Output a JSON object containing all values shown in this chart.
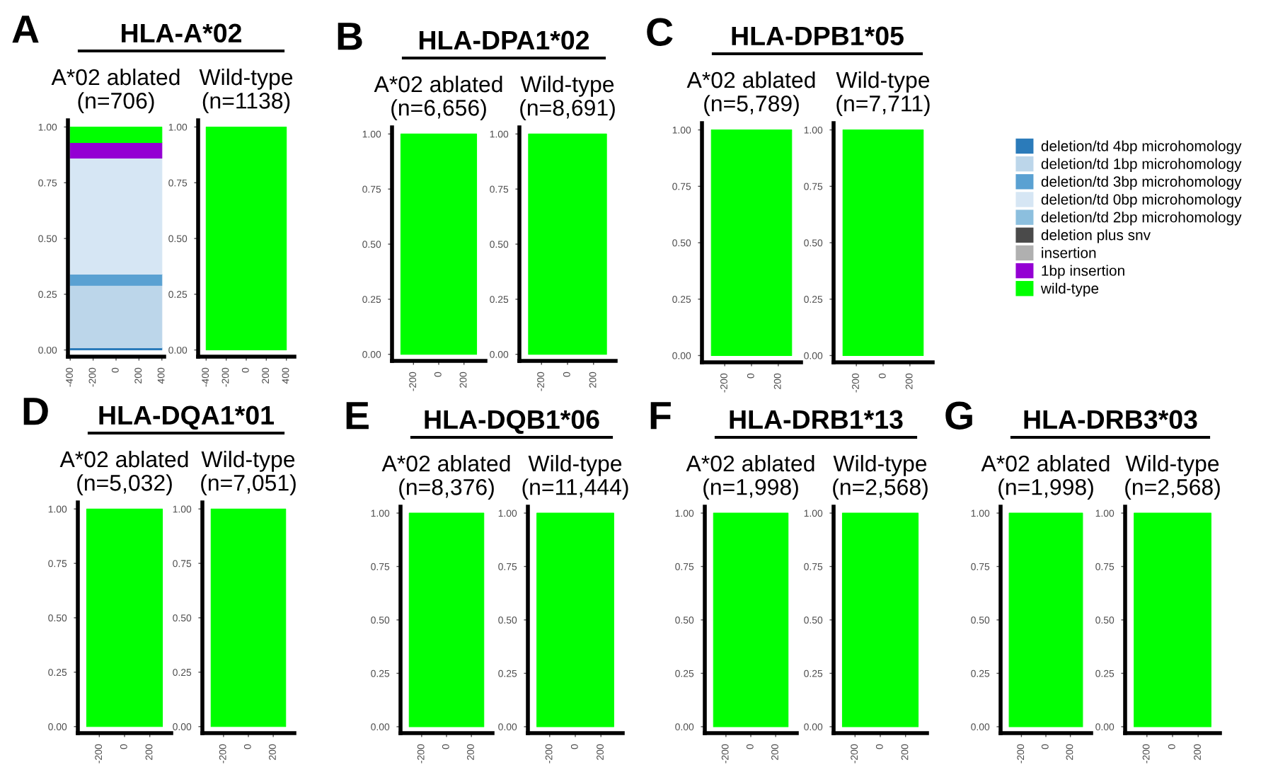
{
  "chart_data": [
    {
      "type": "area",
      "stacked": true,
      "title": "HLA-A*02",
      "subtitle": "A*02 ablated\n(n=706)",
      "annotations": [
        "A"
      ],
      "legend": "right",
      "x": [
        -400,
        400
      ],
      "xlim": [
        -420,
        420
      ],
      "xticks": [
        -400,
        -200,
        0,
        200,
        400
      ],
      "ylim": [
        -0.03,
        1.03
      ],
      "yticks": [
        {
          "value": 0,
          "label": "0.00"
        },
        {
          "value": 0.25,
          "label": "0.25"
        },
        {
          "value": 0.5,
          "label": "0.50"
        },
        {
          "value": 0.75,
          "label": "0.75"
        },
        {
          "value": 1,
          "label": "1.00"
        }
      ],
      "series": [
        {
          "name": "deletion/td 4bp microhomology",
          "color": "#2b7bba",
          "values": [
            0.01,
            0.01
          ]
        },
        {
          "name": "deletion/td 1bp microhomology",
          "color": "#bcd6ea",
          "values": [
            0.28,
            0.28
          ]
        },
        {
          "name": "deletion/td 3bp microhomology",
          "color": "#5aa1d2",
          "values": [
            0.05,
            0.05
          ]
        },
        {
          "name": "deletion/td 0bp microhomology",
          "color": "#d6e6f4",
          "values": [
            0.52,
            0.52
          ]
        },
        {
          "name": "deletion/td 2bp microhomology",
          "color": "#8cbfde",
          "values": [
            null,
            null
          ]
        },
        {
          "name": "deletion plus snv",
          "color": "#4a4a4a",
          "values": [
            null,
            null
          ]
        },
        {
          "name": "insertion",
          "color": "#b0b0b0",
          "values": [
            null,
            null
          ]
        },
        {
          "name": "1bp insertion",
          "color": "#9400d3",
          "values": [
            0.07,
            0.07
          ]
        },
        {
          "name": "wild-type",
          "color": "#00ff00",
          "values": [
            0.07,
            0.07
          ]
        }
      ]
    },
    {
      "type": "area",
      "stacked": true,
      "subtitle": "Wild-type\n(n=1138)",
      "x": [
        -400,
        400
      ],
      "xlim": [
        -480,
        480
      ],
      "xticks": [
        -400,
        -200,
        0,
        200,
        400
      ],
      "ylim": [
        -0.03,
        1.03
      ],
      "yticks": [
        {
          "value": 0,
          "label": "0.00"
        },
        {
          "value": 0.25,
          "label": "0.25"
        },
        {
          "value": 0.5,
          "label": "0.50"
        },
        {
          "value": 0.75,
          "label": "0.75"
        },
        {
          "value": 1,
          "label": "1.00"
        }
      ],
      "series": [
        {
          "color": "#00ff00",
          "values": [
            1,
            1
          ]
        }
      ]
    },
    {
      "type": "area",
      "stacked": true,
      "title": "HLA-DPA1*02",
      "subtitle": "A*02 ablated\n(n=6,656)",
      "annotations": [
        "B"
      ],
      "x": [
        -300,
        300
      ],
      "xlim": [
        -370,
        370
      ],
      "xticks": [
        -200,
        0,
        200
      ],
      "ylim": [
        -0.03,
        1.03
      ],
      "yticks": [
        {
          "value": 0,
          "label": "0.00"
        },
        {
          "value": 0.25,
          "label": "0.25"
        },
        {
          "value": 0.5,
          "label": "0.50"
        },
        {
          "value": 0.75,
          "label": "0.75"
        },
        {
          "value": 1,
          "label": "1.00"
        }
      ],
      "series": [
        {
          "color": "#00ff00",
          "values": [
            1,
            1
          ]
        }
      ]
    },
    {
      "type": "area",
      "stacked": true,
      "subtitle": "Wild-type\n(n=8,691)",
      "x": [
        -300,
        300
      ],
      "xlim": [
        -370,
        370
      ],
      "xticks": [
        -200,
        0,
        200
      ],
      "ylim": [
        -0.03,
        1.03
      ],
      "yticks": [
        {
          "value": 0,
          "label": "0.00"
        },
        {
          "value": 0.25,
          "label": "0.25"
        },
        {
          "value": 0.5,
          "label": "0.50"
        },
        {
          "value": 0.75,
          "label": "0.75"
        },
        {
          "value": 1,
          "label": "1.00"
        }
      ],
      "series": [
        {
          "color": "#00ff00",
          "values": [
            1,
            1
          ]
        }
      ]
    },
    {
      "type": "area",
      "stacked": true,
      "title": "HLA-DPB1*05",
      "subtitle": "A*02 ablated\n(n=5,789)",
      "annotations": [
        "C"
      ],
      "x": [
        -300,
        300
      ],
      "xlim": [
        -370,
        370
      ],
      "xticks": [
        -200,
        0,
        200
      ],
      "ylim": [
        -0.03,
        1.03
      ],
      "yticks": [
        {
          "value": 0,
          "label": "0.00"
        },
        {
          "value": 0.25,
          "label": "0.25"
        },
        {
          "value": 0.5,
          "label": "0.50"
        },
        {
          "value": 0.75,
          "label": "0.75"
        },
        {
          "value": 1,
          "label": "1.00"
        }
      ],
      "series": [
        {
          "color": "#00ff00",
          "values": [
            1,
            1
          ]
        }
      ]
    },
    {
      "type": "area",
      "stacked": true,
      "subtitle": "Wild-type\n(n=7,711)",
      "x": [
        -300,
        300
      ],
      "xlim": [
        -370,
        370
      ],
      "xticks": [
        -200,
        0,
        200
      ],
      "ylim": [
        -0.03,
        1.03
      ],
      "yticks": [
        {
          "value": 0,
          "label": "0.00"
        },
        {
          "value": 0.25,
          "label": "0.25"
        },
        {
          "value": 0.5,
          "label": "0.50"
        },
        {
          "value": 0.75,
          "label": "0.75"
        },
        {
          "value": 1,
          "label": "1.00"
        }
      ],
      "series": [
        {
          "color": "#00ff00",
          "values": [
            1,
            1
          ]
        }
      ]
    },
    {
      "type": "area",
      "stacked": true,
      "title": "HLA-DQA1*01",
      "subtitle": "A*02 ablated\n(n=5,032)",
      "annotations": [
        "D"
      ],
      "x": [
        -300,
        300
      ],
      "xlim": [
        -370,
        370
      ],
      "xticks": [
        -200,
        0,
        200
      ],
      "ylim": [
        -0.03,
        1.03
      ],
      "yticks": [
        {
          "value": 0,
          "label": "0.00"
        },
        {
          "value": 0.25,
          "label": "0.25"
        },
        {
          "value": 0.5,
          "label": "0.50"
        },
        {
          "value": 0.75,
          "label": "0.75"
        },
        {
          "value": 1,
          "label": "1.00"
        }
      ],
      "series": [
        {
          "color": "#00ff00",
          "values": [
            1,
            1
          ]
        }
      ]
    },
    {
      "type": "area",
      "stacked": true,
      "subtitle": "Wild-type\n(n=7,051)",
      "x": [
        -300,
        300
      ],
      "xlim": [
        -370,
        370
      ],
      "xticks": [
        -200,
        0,
        200
      ],
      "ylim": [
        -0.03,
        1.03
      ],
      "yticks": [
        {
          "value": 0,
          "label": "0.00"
        },
        {
          "value": 0.25,
          "label": "0.25"
        },
        {
          "value": 0.5,
          "label": "0.50"
        },
        {
          "value": 0.75,
          "label": "0.75"
        },
        {
          "value": 1,
          "label": "1.00"
        }
      ],
      "series": [
        {
          "color": "#00ff00",
          "values": [
            1,
            1
          ]
        }
      ]
    },
    {
      "type": "area",
      "stacked": true,
      "title": "HLA-DQB1*06",
      "subtitle": "A*02 ablated\n(n=8,376)",
      "annotations": [
        "E"
      ],
      "x": [
        -300,
        300
      ],
      "xlim": [
        -370,
        370
      ],
      "xticks": [
        -200,
        0,
        200
      ],
      "ylim": [
        -0.03,
        1.03
      ],
      "yticks": [
        {
          "value": 0,
          "label": "0.00"
        },
        {
          "value": 0.25,
          "label": "0.25"
        },
        {
          "value": 0.5,
          "label": "0.50"
        },
        {
          "value": 0.75,
          "label": "0.75"
        },
        {
          "value": 1,
          "label": "1.00"
        }
      ],
      "series": [
        {
          "color": "#00ff00",
          "values": [
            1,
            1
          ]
        }
      ]
    },
    {
      "type": "area",
      "stacked": true,
      "subtitle": "Wild-type\n(n=11,444)",
      "x": [
        -300,
        300
      ],
      "xlim": [
        -370,
        370
      ],
      "xticks": [
        -200,
        0,
        200
      ],
      "ylim": [
        -0.03,
        1.03
      ],
      "yticks": [
        {
          "value": 0,
          "label": "0.00"
        },
        {
          "value": 0.25,
          "label": "0.25"
        },
        {
          "value": 0.5,
          "label": "0.50"
        },
        {
          "value": 0.75,
          "label": "0.75"
        },
        {
          "value": 1,
          "label": "1.00"
        }
      ],
      "series": [
        {
          "color": "#00ff00",
          "values": [
            1,
            1
          ]
        }
      ]
    },
    {
      "type": "area",
      "stacked": true,
      "title": "HLA-DRB1*13",
      "subtitle": "A*02 ablated\n(n=1,998)",
      "annotations": [
        "F"
      ],
      "x": [
        -300,
        300
      ],
      "xlim": [
        -370,
        370
      ],
      "xticks": [
        -200,
        0,
        200
      ],
      "ylim": [
        -0.03,
        1.03
      ],
      "yticks": [
        {
          "value": 0,
          "label": "0.00"
        },
        {
          "value": 0.25,
          "label": "0.25"
        },
        {
          "value": 0.5,
          "label": "0.50"
        },
        {
          "value": 0.75,
          "label": "0.75"
        },
        {
          "value": 1,
          "label": "1.00"
        }
      ],
      "series": [
        {
          "color": "#00ff00",
          "values": [
            1,
            1
          ]
        }
      ]
    },
    {
      "type": "area",
      "stacked": true,
      "subtitle": "Wild-type\n(n=2,568)",
      "x": [
        -300,
        300
      ],
      "xlim": [
        -370,
        370
      ],
      "xticks": [
        -200,
        0,
        200
      ],
      "ylim": [
        -0.03,
        1.03
      ],
      "yticks": [
        {
          "value": 0,
          "label": "0.00"
        },
        {
          "value": 0.25,
          "label": "0.25"
        },
        {
          "value": 0.5,
          "label": "0.50"
        },
        {
          "value": 0.75,
          "label": "0.75"
        },
        {
          "value": 1,
          "label": "1.00"
        }
      ],
      "series": [
        {
          "color": "#00ff00",
          "values": [
            1,
            1
          ]
        }
      ]
    },
    {
      "type": "area",
      "stacked": true,
      "title": "HLA-DRB3*03",
      "subtitle": "A*02 ablated\n(n=1,998)",
      "annotations": [
        "G"
      ],
      "x": [
        -300,
        300
      ],
      "xlim": [
        -370,
        370
      ],
      "xticks": [
        -200,
        0,
        200
      ],
      "ylim": [
        -0.03,
        1.03
      ],
      "yticks": [
        {
          "value": 0,
          "label": "0.00"
        },
        {
          "value": 0.25,
          "label": "0.25"
        },
        {
          "value": 0.5,
          "label": "0.50"
        },
        {
          "value": 0.75,
          "label": "0.75"
        },
        {
          "value": 1,
          "label": "1.00"
        }
      ],
      "series": [
        {
          "color": "#00ff00",
          "values": [
            1,
            1
          ]
        }
      ]
    },
    {
      "type": "area",
      "stacked": true,
      "subtitle": "Wild-type\n(n=2,568)",
      "x": [
        -300,
        300
      ],
      "xlim": [
        -370,
        370
      ],
      "xticks": [
        -200,
        0,
        200
      ],
      "ylim": [
        -0.03,
        1.03
      ],
      "yticks": [
        {
          "value": 0,
          "label": "0.00"
        },
        {
          "value": 0.25,
          "label": "0.25"
        },
        {
          "value": 0.5,
          "label": "0.50"
        },
        {
          "value": 0.75,
          "label": "0.75"
        },
        {
          "value": 1,
          "label": "1.00"
        }
      ],
      "series": [
        {
          "color": "#00ff00",
          "values": [
            1,
            1
          ]
        }
      ]
    }
  ]
}
